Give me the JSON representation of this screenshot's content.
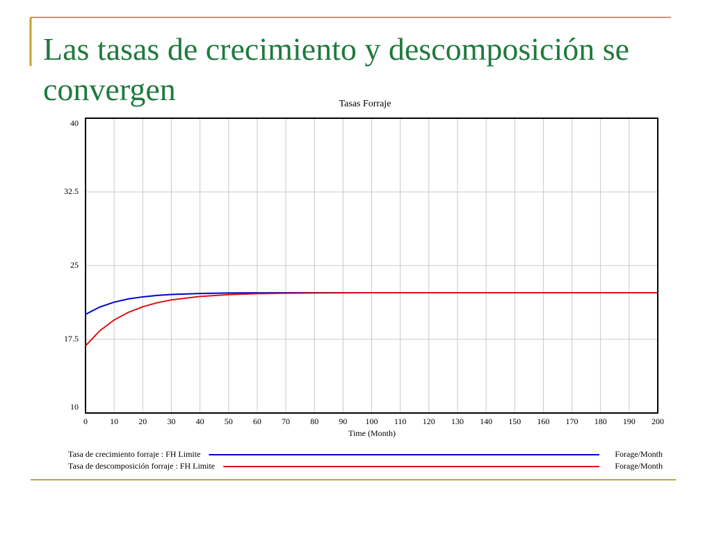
{
  "slide_title": "Las tasas de crecimiento y descomposición se convergen",
  "chart_data": {
    "type": "line",
    "title": "Tasas Forraje",
    "x_label": "Time (Month)",
    "x": [
      0,
      5,
      10,
      15,
      20,
      25,
      30,
      40,
      50,
      60,
      70,
      80,
      100,
      120,
      140,
      160,
      180,
      200
    ],
    "series": [
      {
        "name": "Tasa de crecimiento forraje : FH Limite",
        "units": "Forage/Month",
        "color": "#0000cc",
        "values": [
          20.04,
          20.79,
          21.28,
          21.61,
          21.82,
          21.97,
          22.06,
          22.16,
          22.21,
          22.23,
          22.24,
          22.24,
          22.24,
          22.24,
          22.24,
          22.24,
          22.24,
          22.24
        ]
      },
      {
        "name": "Tasa de descomposición forraje : FH Limite",
        "units": "Forage/Month",
        "color": "#dd1111",
        "values": [
          16.84,
          18.37,
          19.47,
          20.25,
          20.81,
          21.22,
          21.51,
          21.86,
          22.05,
          22.14,
          22.19,
          22.21,
          22.24,
          22.24,
          22.24,
          22.24,
          22.24,
          22.24
        ]
      }
    ],
    "xlim": [
      0,
      200
    ],
    "xticks": [
      0,
      10,
      20,
      30,
      40,
      50,
      60,
      70,
      80,
      90,
      100,
      110,
      120,
      130,
      140,
      150,
      160,
      170,
      180,
      190,
      200
    ],
    "ylim": [
      10,
      40
    ],
    "yticks": [
      10,
      17.5,
      25,
      32.5,
      40
    ],
    "grid": true
  }
}
